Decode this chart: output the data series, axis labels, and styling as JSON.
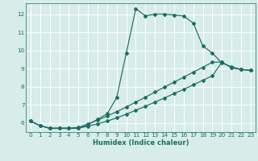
{
  "xlabel": "Humidex (Indice chaleur)",
  "ylabel": "",
  "xlim": [
    -0.5,
    23.5
  ],
  "ylim": [
    5.5,
    12.6
  ],
  "yticks": [
    6,
    7,
    8,
    9,
    10,
    11,
    12
  ],
  "xticks": [
    0,
    1,
    2,
    3,
    4,
    5,
    6,
    7,
    8,
    9,
    10,
    11,
    12,
    13,
    14,
    15,
    16,
    17,
    18,
    19,
    20,
    21,
    22,
    23
  ],
  "bg_color": "#d8ecea",
  "grid_color": "#ffffff",
  "line_color": "#1a6e62",
  "curve1_x": [
    0,
    1,
    2,
    3,
    4,
    5,
    6,
    7,
    8,
    9,
    10,
    11,
    12,
    13,
    14,
    15,
    16,
    17,
    18,
    19,
    20,
    21,
    22,
    23
  ],
  "curve1_y": [
    6.1,
    5.85,
    5.7,
    5.7,
    5.7,
    5.7,
    5.9,
    6.2,
    6.5,
    7.4,
    9.85,
    12.3,
    11.9,
    12.0,
    12.0,
    11.95,
    11.9,
    11.5,
    10.25,
    9.85,
    9.3,
    9.1,
    8.95,
    8.9
  ],
  "curve2_x": [
    0,
    1,
    2,
    3,
    4,
    5,
    6,
    7,
    8,
    9,
    10,
    11,
    12,
    13,
    14,
    15,
    16,
    17,
    18,
    19,
    20,
    21,
    22,
    23
  ],
  "curve2_y": [
    6.1,
    5.85,
    5.72,
    5.72,
    5.72,
    5.75,
    5.95,
    6.15,
    6.38,
    6.62,
    6.88,
    7.15,
    7.42,
    7.7,
    7.98,
    8.25,
    8.52,
    8.8,
    9.07,
    9.35,
    9.35,
    9.05,
    8.95,
    8.9
  ],
  "curve3_x": [
    0,
    1,
    2,
    3,
    4,
    5,
    6,
    7,
    8,
    9,
    10,
    11,
    12,
    13,
    14,
    15,
    16,
    17,
    18,
    19,
    20,
    21,
    22,
    23
  ],
  "curve3_y": [
    6.1,
    5.85,
    5.7,
    5.7,
    5.7,
    5.72,
    5.82,
    5.95,
    6.1,
    6.28,
    6.48,
    6.7,
    6.92,
    7.15,
    7.38,
    7.62,
    7.85,
    8.1,
    8.35,
    8.6,
    9.35,
    9.05,
    8.95,
    8.9
  ],
  "marker": "D",
  "markersize": 2.0,
  "linewidth": 0.85,
  "xlabel_fontsize": 6.0,
  "tick_fontsize": 5.2
}
